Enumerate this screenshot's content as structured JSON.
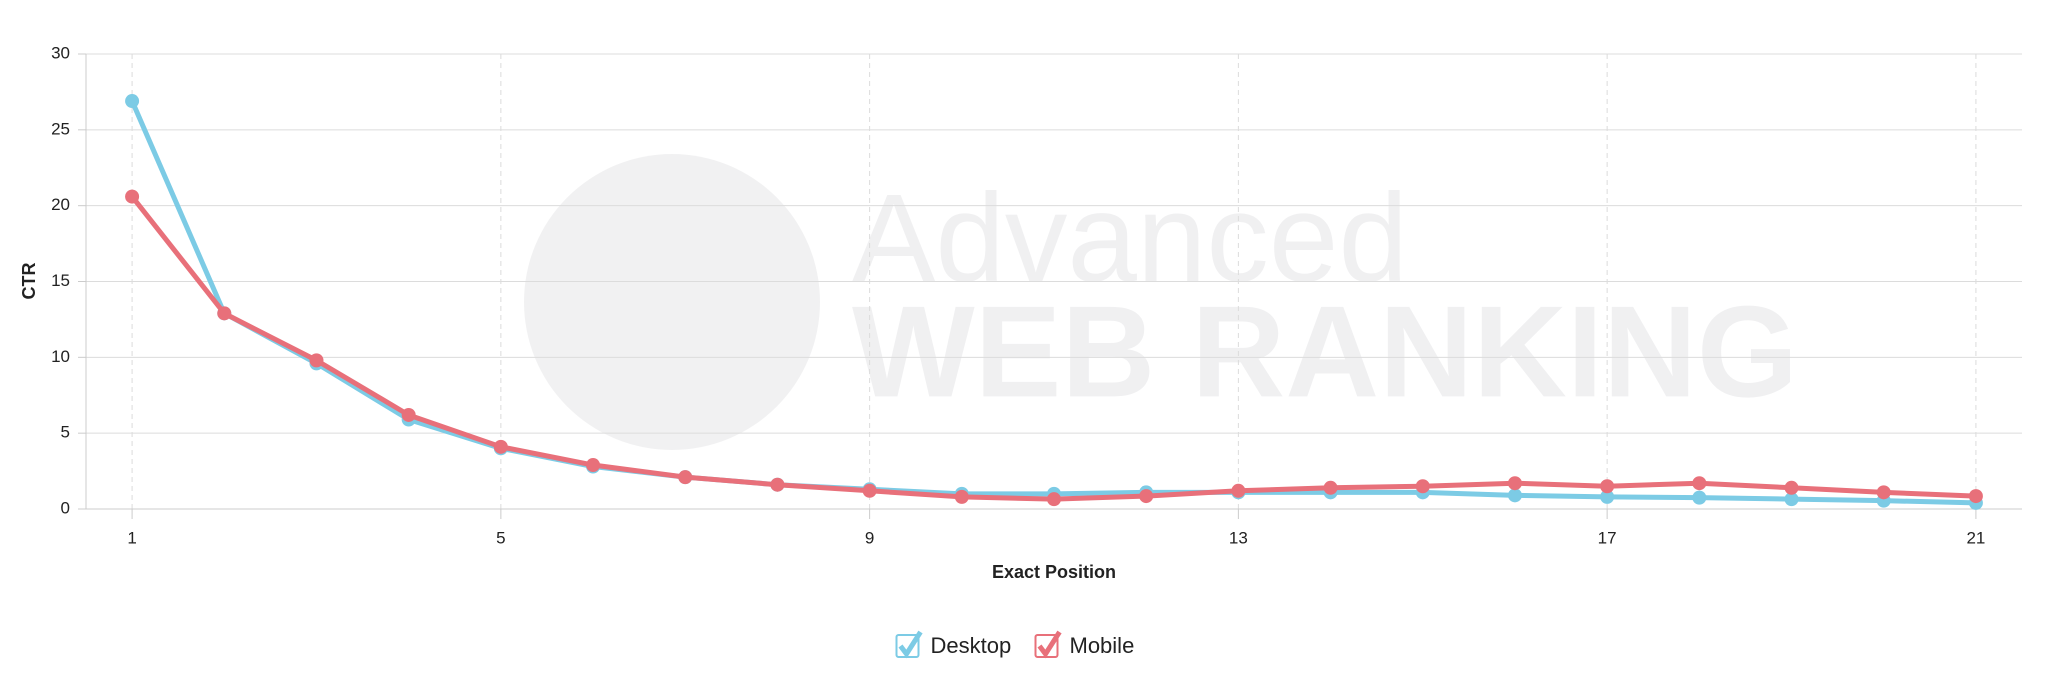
{
  "chart_data": {
    "type": "line",
    "watermark": [
      "Advanced",
      "WEB RANKING"
    ],
    "x_label": "Exact Position",
    "y_label": "CTR",
    "x": [
      1,
      2,
      3,
      4,
      5,
      6,
      7,
      8,
      9,
      10,
      11,
      12,
      13,
      14,
      15,
      16,
      17,
      18,
      19,
      20,
      21
    ],
    "series": [
      {
        "name": "Desktop",
        "color": "#7ccbe5",
        "values": [
          26.9,
          12.9,
          9.6,
          5.9,
          4.0,
          2.8,
          2.1,
          1.6,
          1.3,
          1.0,
          1.0,
          1.1,
          1.1,
          1.1,
          1.1,
          0.9,
          0.8,
          0.75,
          0.65,
          0.55,
          0.4
        ]
      },
      {
        "name": "Mobile",
        "color": "#e8707a",
        "values": [
          20.6,
          12.9,
          9.8,
          6.2,
          4.1,
          2.9,
          2.1,
          1.6,
          1.2,
          0.8,
          0.65,
          0.85,
          1.2,
          1.4,
          1.5,
          1.7,
          1.5,
          1.7,
          1.4,
          1.1,
          0.85
        ]
      }
    ],
    "xlim": [
      0.5,
      21.5
    ],
    "xticks": [
      1,
      5,
      9,
      13,
      17,
      21
    ],
    "ylim": [
      0,
      30
    ],
    "yticks": [
      0,
      5,
      10,
      15,
      20,
      25,
      30
    ],
    "grid": true
  }
}
